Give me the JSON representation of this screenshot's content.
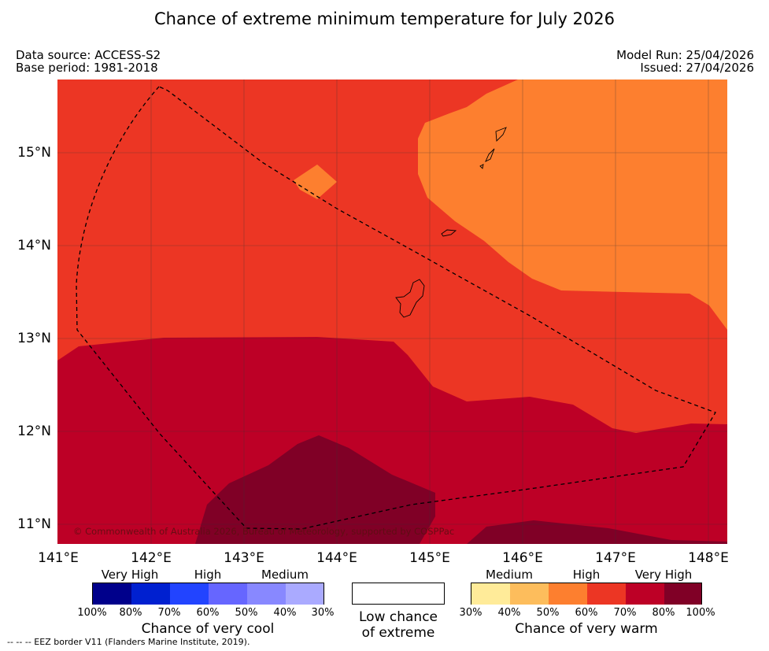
{
  "title": "Chance of extreme minimum temperature for July 2026",
  "meta": {
    "data_source": "Data source: ACCESS-S2",
    "base_period": "Base period: 1981-2018",
    "model_run": "Model Run: 25/04/2026",
    "issued": "Issued: 27/04/2026"
  },
  "axes": {
    "lat_labels": [
      "15°N",
      "14°N",
      "13°N",
      "12°N",
      "11°N"
    ],
    "lon_labels": [
      "141°E",
      "142°E",
      "143°E",
      "144°E",
      "145°E",
      "146°E",
      "147°E",
      "148°E"
    ]
  },
  "copyright": "© Commonwealth of Australia 2026, Bureau of Meteorology, supported by COSPPac",
  "legend": {
    "cool": {
      "title": "Chance of very cool",
      "categories": [
        "Very High",
        "High",
        "Medium"
      ],
      "ticks": [
        "100%",
        "80%",
        "70%",
        "60%",
        "50%",
        "40%",
        "30%"
      ],
      "colors": [
        "#00008b",
        "#0020d0",
        "#2244ff",
        "#6666ff",
        "#8888ff",
        "#aaaaff"
      ]
    },
    "low": {
      "line1": "Low chance",
      "line2": "of extreme"
    },
    "warm": {
      "title": "Chance of very warm",
      "categories": [
        "Medium",
        "High",
        "Very High"
      ],
      "ticks": [
        "30%",
        "40%",
        "50%",
        "60%",
        "70%",
        "80%",
        "100%"
      ],
      "colors": [
        "#ffeb99",
        "#fdbd5c",
        "#fd7f2f",
        "#ec3624",
        "#bd0026",
        "#800026"
      ]
    }
  },
  "footnote": "--  --  -- EEZ border V11 (Flanders Marine Institute, 2019).",
  "colors": {
    "orange": "#fd7f2f",
    "red": "#ec3624",
    "dark_red": "#bd0026",
    "darkest_red": "#800026"
  }
}
